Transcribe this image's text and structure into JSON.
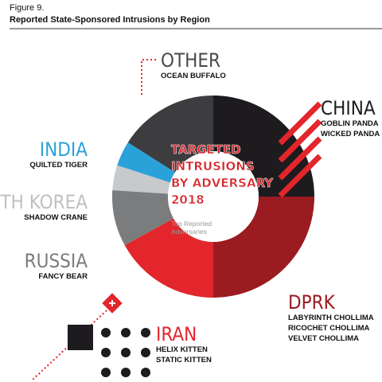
{
  "chart_data": {
    "type": "donut",
    "figure": "Figure 9.",
    "title": "Reported State-Sponsored Intrusions by Region",
    "center_title": [
      "TARGETED",
      "INTRUSIONS",
      "BY ADVERSARY",
      "2018"
    ],
    "center_subtitle": [
      "Top Reported",
      "Adversaries"
    ],
    "categories": [
      "CHINA",
      "DPRK",
      "IRAN",
      "RUSSIA",
      "SOUTH KOREA",
      "INDIA",
      "OTHER"
    ],
    "values": [
      25,
      25,
      17,
      9,
      4,
      4,
      16
    ],
    "colors": [
      "#1d1b1e",
      "#9a1b20",
      "#e2262b",
      "#7b7c7e",
      "#c8c9cb",
      "#2ba1d9",
      "#3d3c3f"
    ],
    "adversaries": [
      [
        "GOBLIN PANDA",
        "WICKED PANDA"
      ],
      [
        "LABYRINTH CHOLLIMA",
        "RICOCHET CHOLLIMA",
        "VELVET CHOLLIMA"
      ],
      [
        "HELIX KITTEN",
        "STATIC KITTEN"
      ],
      [
        "FANCY BEAR"
      ],
      [
        "SHADOW CRANE"
      ],
      [
        "QUILTED TIGER"
      ],
      [
        "OCEAN BUFFALO"
      ]
    ]
  }
}
